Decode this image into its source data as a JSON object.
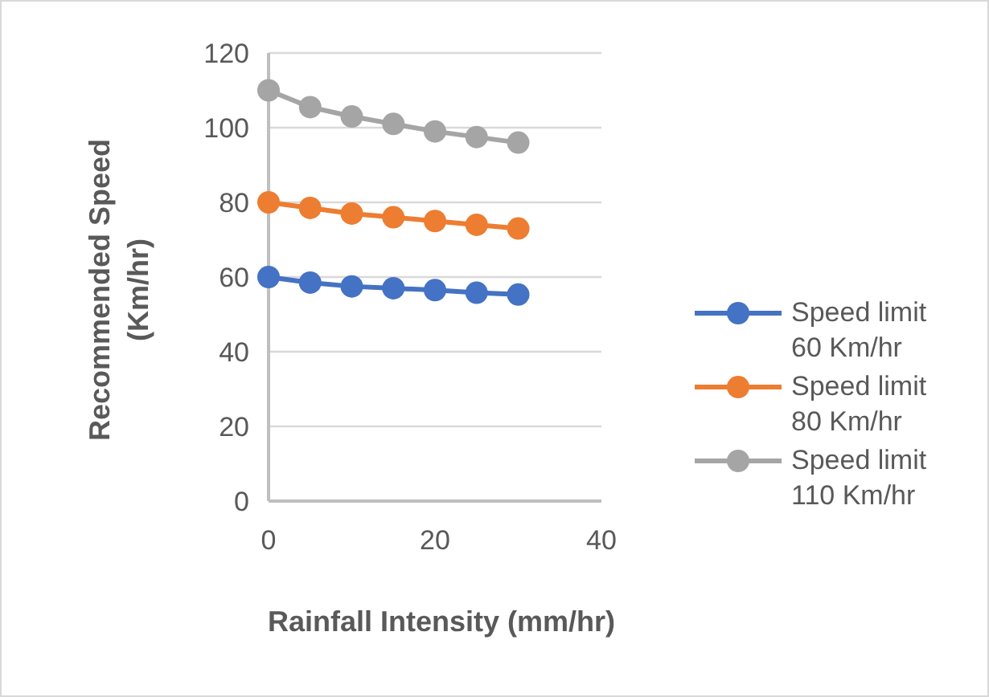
{
  "chart_data": {
    "type": "line",
    "xlabel": "Rainfall Intensity (mm/hr)",
    "ylabel": "Recommended Speed (Km/hr)",
    "x": [
      0,
      5,
      10,
      15,
      20,
      25,
      30
    ],
    "series": [
      {
        "name": "Speed limit 60 Km/hr",
        "color": "#4472c4",
        "values": [
          60,
          58.5,
          57.5,
          57,
          56.5,
          55.8,
          55.3
        ]
      },
      {
        "name": "Speed limit 80 Km/hr",
        "color": "#ed7d31",
        "values": [
          80,
          78.5,
          77,
          76,
          75,
          74,
          73
        ]
      },
      {
        "name": "Speed limit 110 Km/hr",
        "color": "#a5a5a5",
        "values": [
          110,
          105.5,
          103,
          101,
          99,
          97.5,
          96
        ]
      }
    ],
    "xlim": [
      0,
      40
    ],
    "xticks": [
      0,
      20,
      40
    ],
    "ylim": [
      0,
      120
    ],
    "yticks": [
      0,
      20,
      40,
      60,
      80,
      100,
      120
    ],
    "grid": "y",
    "legend": "right",
    "marker": "circle",
    "line_style": "solid"
  }
}
